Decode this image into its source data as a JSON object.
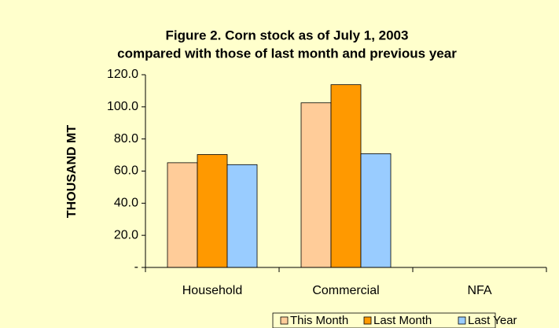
{
  "chart_data": {
    "type": "bar",
    "title": "Figure 2.  Corn stock as of July  1, 2003",
    "subtitle": "compared with those of last month and previous year",
    "y_label": "THOUSAND  MT",
    "categories": [
      "Household",
      "Commercial",
      "NFA"
    ],
    "series": [
      {
        "name": "This Month",
        "color": "#ffcc99",
        "values": [
          65.2,
          102.5,
          0
        ]
      },
      {
        "name": "Last Month",
        "color": "#ff9900",
        "values": [
          70.3,
          113.8,
          0
        ]
      },
      {
        "name": "Last Year",
        "color": "#99ccff",
        "values": [
          64.0,
          70.8,
          0
        ]
      }
    ],
    "ylim": [
      0,
      120
    ],
    "yticks": [
      {
        "value": 0,
        "label": "-"
      },
      {
        "value": 20,
        "label": "20.0"
      },
      {
        "value": 40,
        "label": "40.0"
      },
      {
        "value": 60,
        "label": "60.0"
      },
      {
        "value": 80,
        "label": "80.0"
      },
      {
        "value": 100,
        "label": "100.0"
      },
      {
        "value": 120,
        "label": "120.0"
      }
    ],
    "grid": false,
    "legend": "bottom"
  }
}
